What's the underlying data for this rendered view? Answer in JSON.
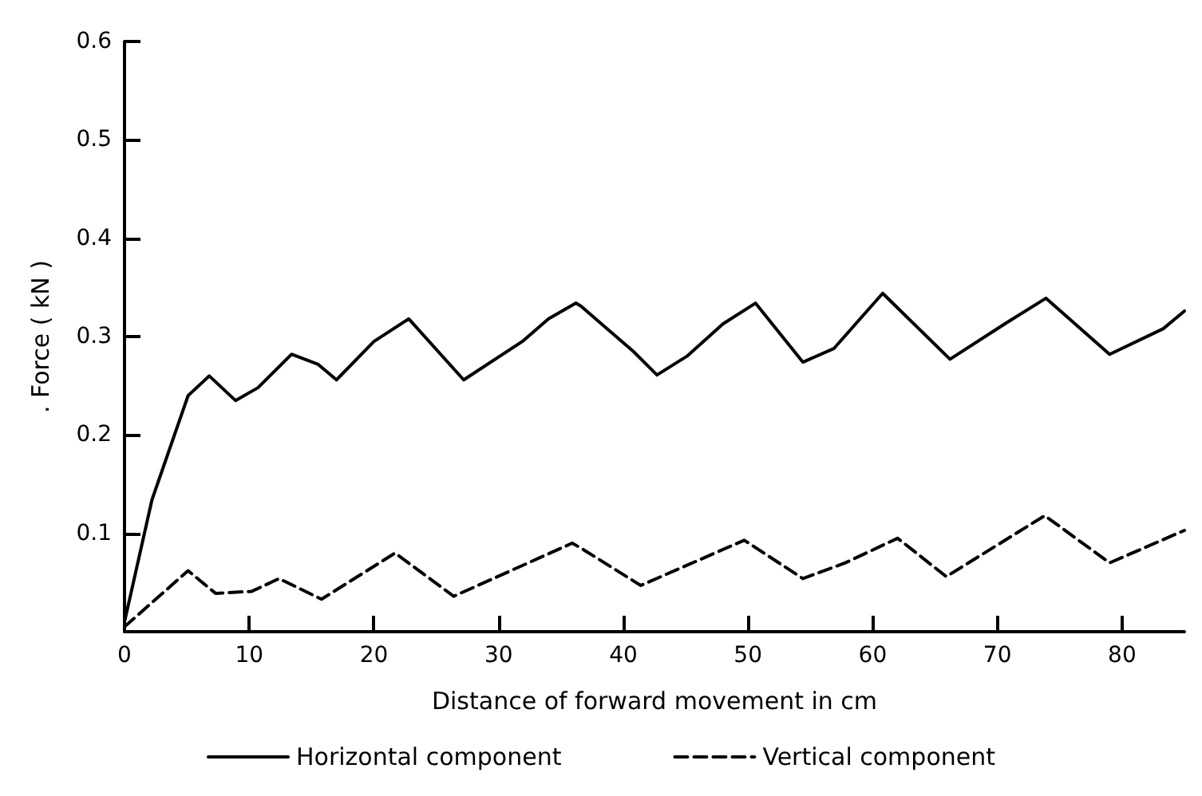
{
  "chart_data": {
    "type": "line",
    "xlabel": "Distance of forward movement in cm",
    "ylabel": ". Force ( kN )",
    "xlim": [
      0,
      85
    ],
    "ylim": [
      0,
      0.6
    ],
    "xticks": [
      0,
      10,
      20,
      30,
      40,
      50,
      60,
      70,
      80
    ],
    "yticks": [
      0.1,
      0.2,
      0.3,
      0.4,
      0.5,
      0.6
    ],
    "grid": false,
    "legend": "bottom",
    "marker": "none",
    "series": [
      {
        "name": "Horizontal component",
        "color": "#000000",
        "line_style": "solid",
        "x": [
          0,
          2.2,
          5.1,
          6.8,
          8.9,
          10.7,
          13.4,
          15.5,
          17,
          20,
          22.8,
          27.2,
          31.9,
          34,
          36.2,
          36.6,
          40.8,
          42.7,
          45.1,
          48,
          50.6,
          54.4,
          56.9,
          60.8,
          66.2,
          70.6,
          73.9,
          79,
          83.3,
          85
        ],
        "values": [
          0.01,
          0.134,
          0.24,
          0.26,
          0.235,
          0.248,
          0.282,
          0.272,
          0.256,
          0.295,
          0.318,
          0.256,
          0.295,
          0.318,
          0.334,
          0.331,
          0.285,
          0.261,
          0.28,
          0.313,
          0.334,
          0.274,
          0.288,
          0.344,
          0.277,
          0.313,
          0.339,
          0.282,
          0.308,
          0.326
        ]
      },
      {
        "name": "Vertical component",
        "color": "#000000",
        "line_style": "dashed",
        "x": [
          0,
          5.1,
          7.3,
          10.2,
          12.4,
          15.8,
          21.7,
          26.4,
          35.9,
          36.6,
          41.4,
          49.7,
          54.4,
          57.8,
          62,
          65.9,
          73.8,
          79,
          85
        ],
        "values": [
          0.005,
          0.062,
          0.039,
          0.041,
          0.054,
          0.033,
          0.08,
          0.036,
          0.09,
          0.085,
          0.047,
          0.093,
          0.054,
          0.07,
          0.095,
          0.056,
          0.118,
          0.07,
          0.103
        ]
      }
    ]
  }
}
